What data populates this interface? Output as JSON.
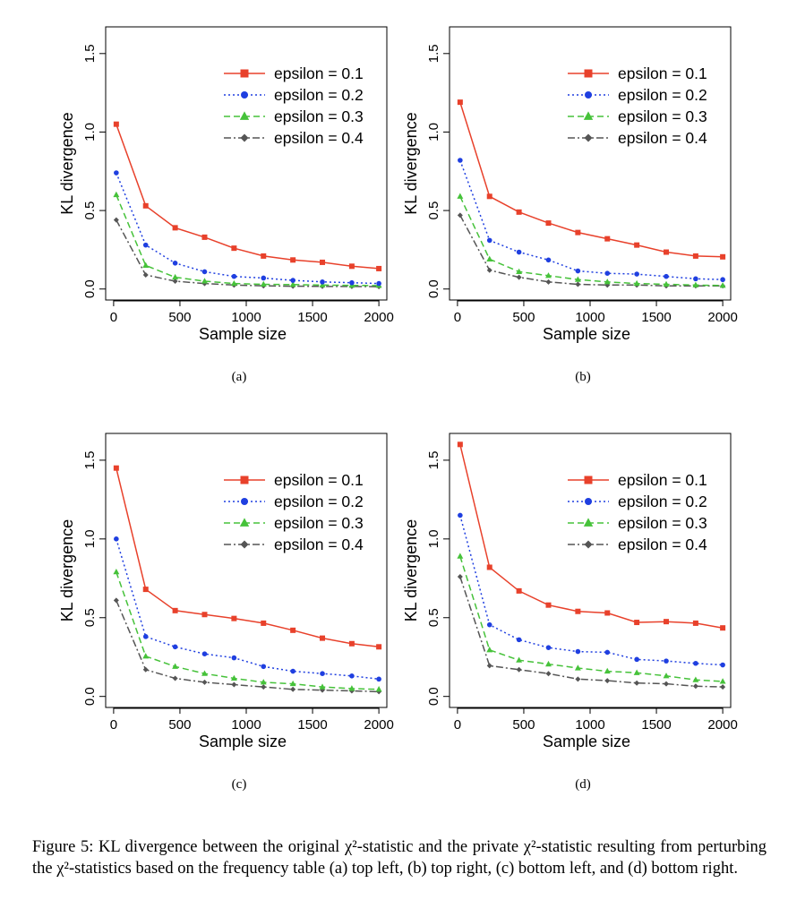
{
  "chart_data": [
    {
      "panel": "(a)",
      "type": "line",
      "xlabel": "Sample size",
      "ylabel": "KL divergence",
      "xlim": [
        0,
        2000
      ],
      "ylim": [
        0,
        1.6
      ],
      "xticks": [
        "0",
        "500",
        "1000",
        "1500",
        "2000"
      ],
      "yticks": [
        "0.0",
        "0.5",
        "1.0",
        "1.5"
      ],
      "legend_position": "top-right",
      "grid": false,
      "x": [
        20,
        242,
        464,
        686,
        908,
        1130,
        1352,
        1574,
        1796,
        2000
      ],
      "series": [
        {
          "name": "epsilon = 0.1",
          "color": "#e8412b",
          "marker": "square",
          "dash": "solid",
          "values": [
            1.05,
            0.53,
            0.39,
            0.33,
            0.26,
            0.21,
            0.185,
            0.17,
            0.145,
            0.13
          ]
        },
        {
          "name": "epsilon = 0.2",
          "color": "#1f3fe0",
          "marker": "circle",
          "dash": "dotted",
          "values": [
            0.74,
            0.28,
            0.165,
            0.11,
            0.08,
            0.07,
            0.055,
            0.045,
            0.04,
            0.035
          ]
        },
        {
          "name": "epsilon = 0.3",
          "color": "#46c23a",
          "marker": "triangle",
          "dash": "dashed",
          "values": [
            0.6,
            0.15,
            0.075,
            0.05,
            0.035,
            0.03,
            0.028,
            0.025,
            0.023,
            0.022
          ]
        },
        {
          "name": "epsilon = 0.4",
          "color": "#555555",
          "marker": "diamond",
          "dash": "dashdot",
          "values": [
            0.44,
            0.09,
            0.05,
            0.035,
            0.025,
            0.02,
            0.018,
            0.017,
            0.016,
            0.015
          ]
        }
      ]
    },
    {
      "panel": "(b)",
      "type": "line",
      "xlabel": "Sample size",
      "ylabel": "KL divergence",
      "xlim": [
        0,
        2000
      ],
      "ylim": [
        0,
        1.6
      ],
      "xticks": [
        "0",
        "500",
        "1000",
        "1500",
        "2000"
      ],
      "yticks": [
        "0.0",
        "0.5",
        "1.0",
        "1.5"
      ],
      "legend_position": "top-right",
      "grid": false,
      "x": [
        20,
        242,
        464,
        686,
        908,
        1130,
        1352,
        1574,
        1796,
        2000
      ],
      "series": [
        {
          "name": "epsilon = 0.1",
          "color": "#e8412b",
          "marker": "square",
          "dash": "solid",
          "values": [
            1.19,
            0.59,
            0.49,
            0.42,
            0.36,
            0.32,
            0.28,
            0.235,
            0.21,
            0.205
          ]
        },
        {
          "name": "epsilon = 0.2",
          "color": "#1f3fe0",
          "marker": "circle",
          "dash": "dotted",
          "values": [
            0.82,
            0.31,
            0.235,
            0.185,
            0.115,
            0.1,
            0.095,
            0.08,
            0.065,
            0.06
          ]
        },
        {
          "name": "epsilon = 0.3",
          "color": "#46c23a",
          "marker": "triangle",
          "dash": "dashed",
          "values": [
            0.59,
            0.19,
            0.11,
            0.085,
            0.06,
            0.045,
            0.035,
            0.03,
            0.025,
            0.022
          ]
        },
        {
          "name": "epsilon = 0.4",
          "color": "#555555",
          "marker": "diamond",
          "dash": "dashdot",
          "values": [
            0.47,
            0.12,
            0.075,
            0.045,
            0.03,
            0.025,
            0.025,
            0.02,
            0.02,
            0.02
          ]
        }
      ]
    },
    {
      "panel": "(c)",
      "type": "line",
      "xlabel": "Sample size",
      "ylabel": "KL divergence",
      "xlim": [
        0,
        2000
      ],
      "ylim": [
        0,
        1.6
      ],
      "xticks": [
        "0",
        "500",
        "1000",
        "1500",
        "2000"
      ],
      "yticks": [
        "0.0",
        "0.5",
        "1.0",
        "1.5"
      ],
      "legend_position": "top-right",
      "grid": false,
      "x": [
        20,
        242,
        464,
        686,
        908,
        1130,
        1352,
        1574,
        1796,
        2000
      ],
      "series": [
        {
          "name": "epsilon = 0.1",
          "color": "#e8412b",
          "marker": "square",
          "dash": "solid",
          "values": [
            1.45,
            0.68,
            0.545,
            0.52,
            0.495,
            0.465,
            0.42,
            0.37,
            0.335,
            0.315
          ]
        },
        {
          "name": "epsilon = 0.2",
          "color": "#1f3fe0",
          "marker": "circle",
          "dash": "dotted",
          "values": [
            1.0,
            0.38,
            0.315,
            0.27,
            0.245,
            0.19,
            0.16,
            0.145,
            0.13,
            0.11
          ]
        },
        {
          "name": "epsilon = 0.3",
          "color": "#46c23a",
          "marker": "triangle",
          "dash": "dashed",
          "values": [
            0.79,
            0.255,
            0.19,
            0.145,
            0.115,
            0.09,
            0.08,
            0.06,
            0.05,
            0.045
          ]
        },
        {
          "name": "epsilon = 0.4",
          "color": "#555555",
          "marker": "diamond",
          "dash": "dashdot",
          "values": [
            0.61,
            0.17,
            0.115,
            0.09,
            0.075,
            0.06,
            0.045,
            0.04,
            0.035,
            0.03
          ]
        }
      ]
    },
    {
      "panel": "(d)",
      "type": "line",
      "xlabel": "Sample size",
      "ylabel": "KL divergence",
      "xlim": [
        0,
        2000
      ],
      "ylim": [
        0,
        1.6
      ],
      "xticks": [
        "0",
        "500",
        "1000",
        "1500",
        "2000"
      ],
      "yticks": [
        "0.0",
        "0.5",
        "1.0",
        "1.5"
      ],
      "legend_position": "top-right",
      "grid": false,
      "x": [
        20,
        242,
        464,
        686,
        908,
        1130,
        1352,
        1574,
        1796,
        2000
      ],
      "series": [
        {
          "name": "epsilon = 0.1",
          "color": "#e8412b",
          "marker": "square",
          "dash": "solid",
          "values": [
            1.6,
            0.82,
            0.67,
            0.58,
            0.54,
            0.53,
            0.47,
            0.475,
            0.465,
            0.435
          ]
        },
        {
          "name": "epsilon = 0.2",
          "color": "#1f3fe0",
          "marker": "circle",
          "dash": "dotted",
          "values": [
            1.15,
            0.455,
            0.36,
            0.31,
            0.285,
            0.28,
            0.235,
            0.225,
            0.21,
            0.2
          ]
        },
        {
          "name": "epsilon = 0.3",
          "color": "#46c23a",
          "marker": "triangle",
          "dash": "dashed",
          "values": [
            0.89,
            0.295,
            0.23,
            0.205,
            0.18,
            0.16,
            0.15,
            0.13,
            0.105,
            0.095
          ]
        },
        {
          "name": "epsilon = 0.4",
          "color": "#555555",
          "marker": "diamond",
          "dash": "dashdot",
          "values": [
            0.76,
            0.195,
            0.17,
            0.145,
            0.11,
            0.1,
            0.085,
            0.08,
            0.065,
            0.06
          ]
        }
      ]
    }
  ],
  "caption": "Figure 5: KL divergence between the original χ²-statistic and the private χ²-statistic resulting from perturbing the χ²-statistics based on the frequency table (a) top left, (b) top right, (c) bottom left, and (d) bottom right."
}
